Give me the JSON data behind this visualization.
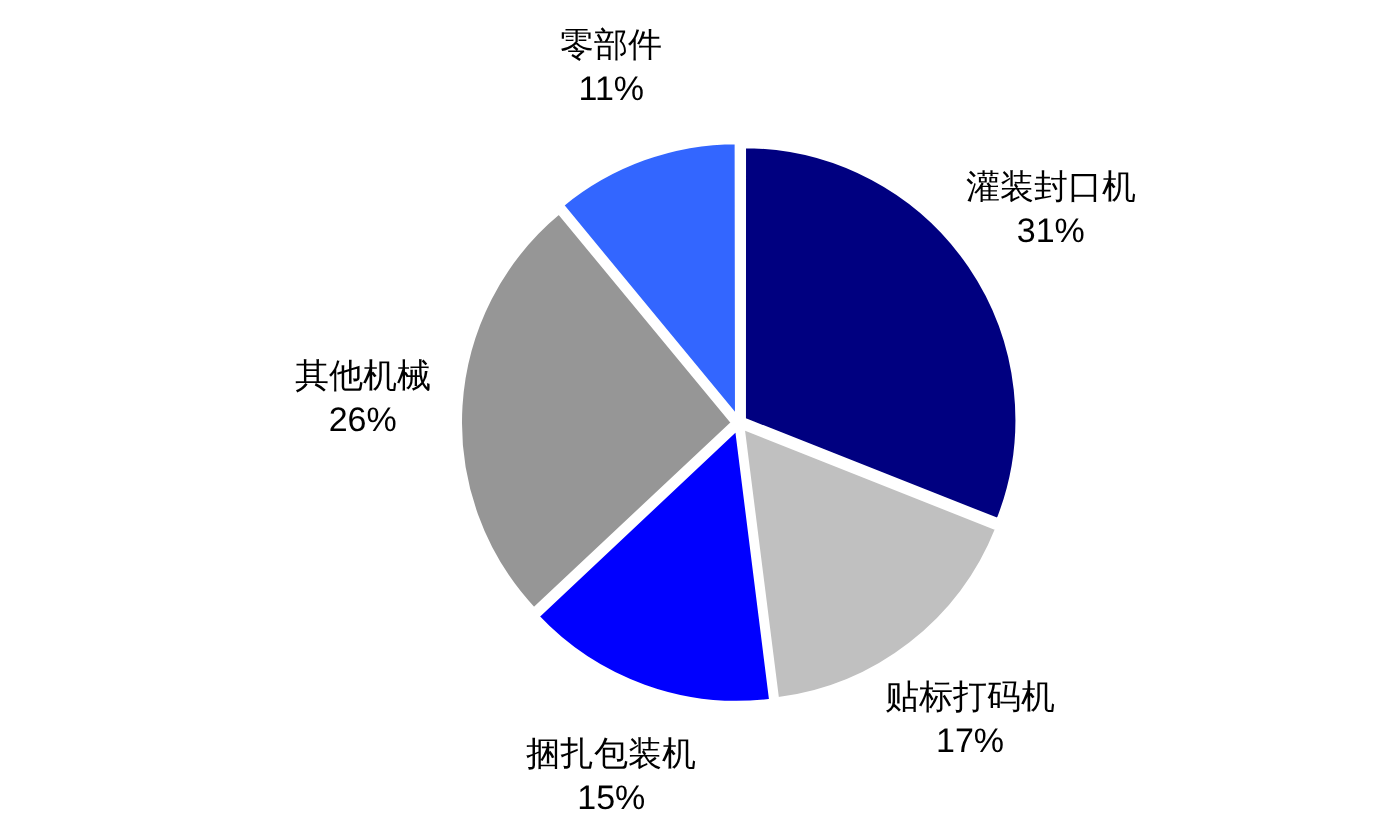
{
  "chart_data": {
    "type": "pie",
    "categories": [
      "灌装封口机",
      "贴标打码机",
      "捆扎包装机",
      "其他机械",
      "零部件"
    ],
    "values": [
      31,
      17,
      15,
      26,
      11
    ],
    "value_labels": [
      "31%",
      "17%",
      "15%",
      "26%",
      "11%"
    ],
    "colors": [
      "#000080",
      "#c0c0c0",
      "#0000ff",
      "#969696",
      "#3366ff"
    ],
    "legend": false
  }
}
